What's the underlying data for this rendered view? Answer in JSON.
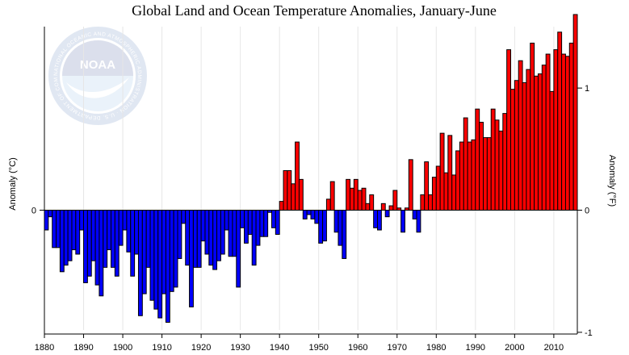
{
  "chart_data": {
    "type": "bar",
    "title": "Global Land and Ocean Temperature Anomalies, January-June",
    "ylabel_left": "Anomaly (°C)",
    "ylabel_right": "Anomaly (°F)",
    "xlim": [
      1880,
      2015
    ],
    "ylim_c": [
      -0.545,
      0.835
    ],
    "xticks": [
      1880,
      1890,
      1900,
      1910,
      1920,
      1930,
      1940,
      1950,
      1960,
      1970,
      1980,
      1990,
      2000,
      2010
    ],
    "yticks_left": [
      {
        "value": 0,
        "label": "0"
      }
    ],
    "yticks_right": [
      {
        "value_f": -1,
        "label": "-1"
      },
      {
        "value_f": 0,
        "label": "0"
      },
      {
        "value_f": 1,
        "label": "1"
      }
    ],
    "grid": true,
    "colors": {
      "positive": "#ff0000",
      "negative": "#0000ff",
      "grid": "#e6e6e6"
    },
    "logo": {
      "text": "NOAA",
      "ring_text": "NATIONAL OCEANIC AND ATMOSPHERIC ADMINISTRATION · U.S. DEPARTMENT OF COMMERCE"
    },
    "years": [
      1880,
      1881,
      1882,
      1883,
      1884,
      1885,
      1886,
      1887,
      1888,
      1889,
      1890,
      1891,
      1892,
      1893,
      1894,
      1895,
      1896,
      1897,
      1898,
      1899,
      1900,
      1901,
      1902,
      1903,
      1904,
      1905,
      1906,
      1907,
      1908,
      1909,
      1910,
      1911,
      1912,
      1913,
      1914,
      1915,
      1916,
      1917,
      1918,
      1919,
      1920,
      1921,
      1922,
      1923,
      1924,
      1925,
      1926,
      1927,
      1928,
      1929,
      1930,
      1931,
      1932,
      1933,
      1934,
      1935,
      1936,
      1937,
      1938,
      1939,
      1940,
      1941,
      1942,
      1943,
      1944,
      1945,
      1946,
      1947,
      1948,
      1949,
      1950,
      1951,
      1952,
      1953,
      1954,
      1955,
      1956,
      1957,
      1958,
      1959,
      1960,
      1961,
      1962,
      1963,
      1964,
      1965,
      1966,
      1967,
      1968,
      1969,
      1970,
      1971,
      1972,
      1973,
      1974,
      1975,
      1976,
      1977,
      1978,
      1979,
      1980,
      1981,
      1982,
      1983,
      1984,
      1985,
      1986,
      1987,
      1988,
      1989,
      1990,
      1991,
      1992,
      1993,
      1994,
      1995,
      1996,
      1997,
      1998,
      1999,
      2000,
      2001,
      2002,
      2003,
      2004,
      2005,
      2006,
      2007,
      2008,
      2009,
      2010,
      2011,
      2012,
      2013,
      2014,
      2015
    ],
    "values": [
      -0.09,
      -0.03,
      -0.17,
      -0.17,
      -0.28,
      -0.25,
      -0.23,
      -0.18,
      -0.2,
      -0.09,
      -0.33,
      -0.3,
      -0.23,
      -0.34,
      -0.39,
      -0.26,
      -0.18,
      -0.26,
      -0.3,
      -0.16,
      -0.09,
      -0.19,
      -0.3,
      -0.2,
      -0.48,
      -0.38,
      -0.26,
      -0.41,
      -0.45,
      -0.49,
      -0.38,
      -0.51,
      -0.37,
      -0.35,
      -0.22,
      -0.06,
      -0.25,
      -0.44,
      -0.26,
      -0.26,
      -0.14,
      -0.2,
      -0.25,
      -0.27,
      -0.23,
      -0.2,
      -0.09,
      -0.21,
      -0.21,
      -0.35,
      -0.08,
      -0.15,
      -0.11,
      -0.25,
      -0.16,
      -0.12,
      -0.12,
      -0.01,
      -0.08,
      -0.11,
      0.04,
      0.18,
      0.18,
      0.12,
      0.31,
      0.14,
      -0.04,
      -0.02,
      -0.04,
      -0.06,
      -0.15,
      -0.14,
      0.05,
      0.13,
      -0.1,
      -0.16,
      -0.22,
      0.14,
      0.1,
      0.14,
      0.09,
      0.1,
      0.03,
      0.07,
      -0.08,
      -0.09,
      0.03,
      -0.03,
      0.02,
      0.09,
      0.01,
      -0.1,
      0.01,
      0.23,
      -0.04,
      -0.1,
      0.07,
      0.22,
      0.07,
      0.15,
      0.2,
      0.35,
      0.17,
      0.34,
      0.16,
      0.27,
      0.31,
      0.42,
      0.31,
      0.32,
      0.46,
      0.4,
      0.33,
      0.33,
      0.46,
      0.41,
      0.36,
      0.44,
      0.73,
      0.55,
      0.59,
      0.68,
      0.58,
      0.64,
      0.76,
      0.61,
      0.62,
      0.66,
      0.71,
      0.54,
      0.73,
      0.81,
      0.71,
      0.7,
      0.76,
      0.89
    ]
  }
}
